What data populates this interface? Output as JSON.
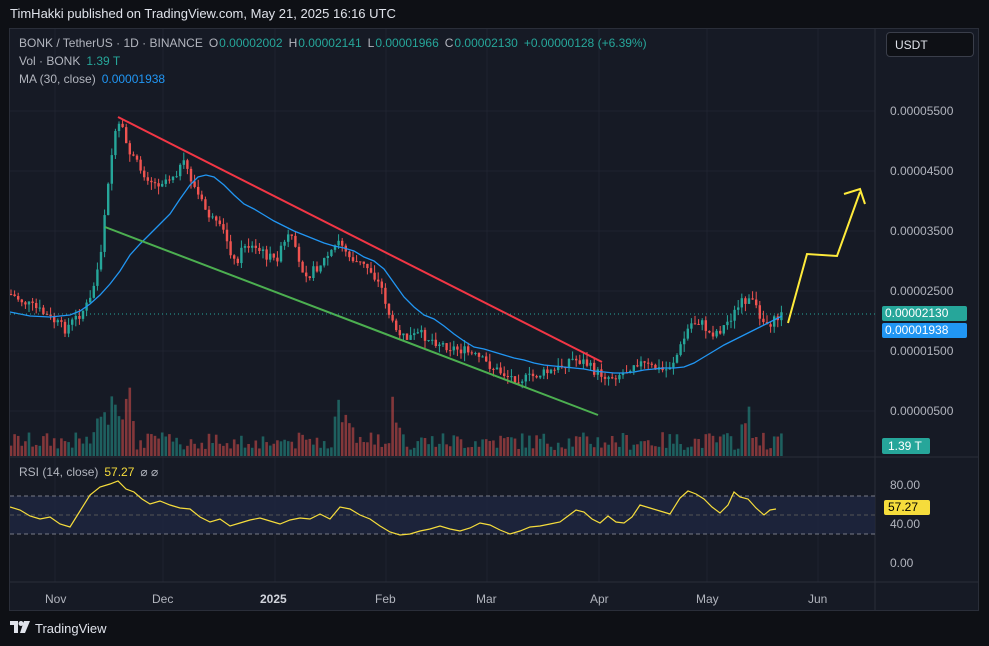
{
  "header": {
    "published": "TimHakki published on TradingView.com, May 21, 2025 16:16 UTC"
  },
  "legend": {
    "symbol": "BONK / TetherUS · 1D · BINANCE",
    "open_key": "O",
    "open": "0.00002002",
    "high_key": "H",
    "high": "0.00002141",
    "low_key": "L",
    "low": "0.00001966",
    "close_key": "C",
    "close": "0.00002130",
    "change": "+0.00000128 (+6.39%)",
    "vol_label": "Vol · BONK",
    "vol_value": "1.39 T",
    "ma_label": "MA (30, close)",
    "ma_value": "0.00001938"
  },
  "currency_button": "USDT",
  "price_axis": {
    "ticks": [
      "0.00005500",
      "0.00004500",
      "0.00003500",
      "0.00002500",
      "0.00001500",
      "0.00000500"
    ],
    "last_price": "0.00002130",
    "ma_price": "0.00001938",
    "volume_tag": "1.39 T"
  },
  "rsi": {
    "label": "RSI (14, close)",
    "value": "57.27",
    "symbols": "⌀  ⌀",
    "ticks": [
      "80.00",
      "40.00",
      "0.00"
    ]
  },
  "time_axis": {
    "labels": [
      "Nov",
      "Dec",
      "2025",
      "Feb",
      "Mar",
      "Apr",
      "May",
      "Jun"
    ]
  },
  "colors": {
    "up": "#26a69a",
    "down": "#ef5350",
    "ma": "#2196f3",
    "resistance": "#f23645",
    "support": "#4caf50",
    "projection": "#ffeb3b",
    "rsi": "#f5dc3c"
  },
  "footer": {
    "brand": "TradingView"
  }
}
